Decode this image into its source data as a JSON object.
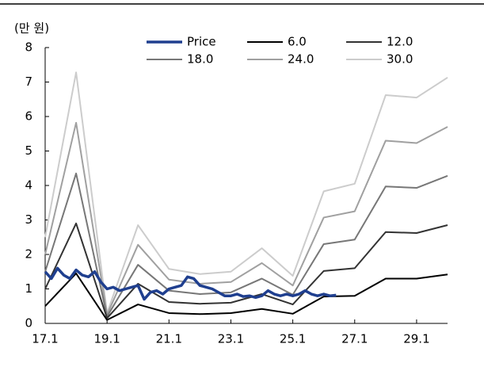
{
  "chart_data": {
    "type": "line",
    "y_label": "(만 원)",
    "xlim": [
      17.1,
      30.1
    ],
    "xticks": [
      17.1,
      19.1,
      21.1,
      23.1,
      25.1,
      27.1,
      29.1
    ],
    "ylim": [
      0,
      8
    ],
    "yticks": [
      0,
      1,
      2,
      3,
      4,
      5,
      6,
      7,
      8
    ],
    "series": [
      {
        "name": "Price",
        "color": "#1f3f8f",
        "width": 3.5,
        "x": [
          17.1,
          17.3,
          17.5,
          17.7,
          17.9,
          18.1,
          18.3,
          18.5,
          18.7,
          18.9,
          19.1,
          19.3,
          19.5,
          19.7,
          19.9,
          20.1,
          20.3,
          20.5,
          20.7,
          20.9,
          21.1,
          21.3,
          21.5,
          21.7,
          21.9,
          22.1,
          22.3,
          22.5,
          22.7,
          22.9,
          23.1,
          23.3,
          23.5,
          23.7,
          23.9,
          24.1,
          24.3,
          24.5,
          24.7,
          24.9,
          25.1,
          25.3,
          25.5,
          25.7,
          25.9,
          26.1,
          26.3,
          26.5
        ],
        "values": [
          1.5,
          1.3,
          1.6,
          1.4,
          1.3,
          1.55,
          1.4,
          1.35,
          1.5,
          1.2,
          1.0,
          1.05,
          0.95,
          1.0,
          1.05,
          1.1,
          0.7,
          0.9,
          0.95,
          0.85,
          1.0,
          1.05,
          1.1,
          1.35,
          1.3,
          1.1,
          1.05,
          1.0,
          0.9,
          0.8,
          0.8,
          0.85,
          0.78,
          0.8,
          0.75,
          0.8,
          0.95,
          0.85,
          0.8,
          0.85,
          0.8,
          0.85,
          0.95,
          0.85,
          0.8,
          0.85,
          0.8,
          0.82
        ]
      },
      {
        "name": "6.0",
        "color": "#000000",
        "width": 2,
        "x": [
          17.1,
          18.1,
          19.1,
          20.1,
          21.1,
          22.1,
          23.1,
          24.1,
          25.1,
          26.1,
          27.1,
          28.1,
          29.1,
          30.1
        ],
        "values": [
          0.5,
          1.45,
          0.1,
          0.55,
          0.3,
          0.27,
          0.3,
          0.42,
          0.28,
          0.78,
          0.8,
          1.3,
          1.3,
          1.42
        ]
      },
      {
        "name": "12.0",
        "color": "#333333",
        "width": 2,
        "x": [
          17.1,
          18.1,
          19.1,
          20.1,
          21.1,
          22.1,
          23.1,
          24.1,
          25.1,
          26.1,
          27.1,
          28.1,
          29.1,
          30.1
        ],
        "values": [
          1.0,
          2.9,
          0.15,
          1.15,
          0.62,
          0.57,
          0.6,
          0.85,
          0.55,
          1.52,
          1.6,
          2.65,
          2.62,
          2.85
        ]
      },
      {
        "name": "18.0",
        "color": "#777777",
        "width": 2,
        "x": [
          17.1,
          18.1,
          19.1,
          20.1,
          21.1,
          22.1,
          23.1,
          24.1,
          25.1,
          26.1,
          27.1,
          28.1,
          29.1,
          30.1
        ],
        "values": [
          1.5,
          4.35,
          0.2,
          1.7,
          0.95,
          0.85,
          0.9,
          1.3,
          0.83,
          2.3,
          2.43,
          3.97,
          3.93,
          4.28
        ]
      },
      {
        "name": "24.0",
        "color": "#a0a0a0",
        "width": 2,
        "x": [
          17.1,
          18.1,
          19.1,
          20.1,
          21.1,
          22.1,
          23.1,
          24.1,
          25.1,
          26.1,
          27.1,
          28.1,
          29.1,
          30.1
        ],
        "values": [
          2.0,
          5.82,
          0.25,
          2.28,
          1.27,
          1.15,
          1.2,
          1.75,
          1.1,
          3.07,
          3.25,
          5.3,
          5.23,
          5.7
        ]
      },
      {
        "name": "30.0",
        "color": "#cccccc",
        "width": 2,
        "x": [
          17.1,
          18.1,
          19.1,
          20.1,
          21.1,
          22.1,
          23.1,
          24.1,
          25.1,
          26.1,
          27.1,
          28.1,
          29.1,
          30.1
        ],
        "values": [
          2.5,
          7.28,
          0.3,
          2.85,
          1.58,
          1.43,
          1.5,
          2.18,
          1.38,
          3.83,
          4.05,
          6.62,
          6.55,
          7.13
        ]
      }
    ]
  }
}
